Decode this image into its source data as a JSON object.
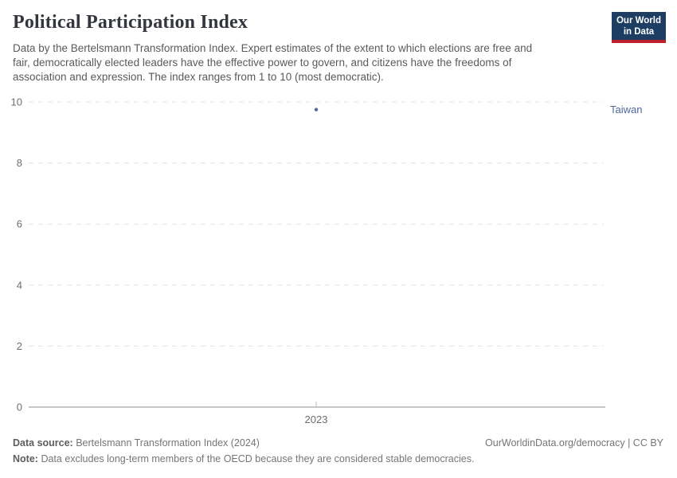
{
  "header": {
    "title": "Political Participation Index",
    "subtitle_lines": [
      "Data by the Bertelsmann Transformation Index. Expert estimates of the extent to which elections are free and",
      "fair, democratically elected leaders have the effective power to govern, and citizens have the freedoms of",
      "association and expression. The index ranges from 1 to 10 (most democratic)."
    ],
    "logo": {
      "line1": "Our World",
      "line2": "in Data"
    }
  },
  "chart_data": {
    "type": "scatter",
    "title": "Political Participation Index",
    "x": [
      2023
    ],
    "xtick_labels": [
      "2023"
    ],
    "series": [
      {
        "name": "Taiwan",
        "values": [
          9.75
        ],
        "color": "#4c6a9c"
      }
    ],
    "ylim": [
      0,
      10
    ],
    "yticks": [
      0,
      2,
      4,
      6,
      8,
      10
    ],
    "grid": "horizontal-dashed",
    "legend_position": "right-of-point",
    "colors": {
      "gridline": "#e2e2e2",
      "axis": "#8f8f8f",
      "tick_mark": "#bbbbbb",
      "tick_label": "#6e6e6e"
    }
  },
  "footer": {
    "source_label": "Data source:",
    "source_value": "Bertelsmann Transformation Index (2024)",
    "link": "OurWorldinData.org/democracy",
    "separator": "|",
    "license": "CC BY",
    "note_label": "Note:",
    "note_value": "Data excludes long-term members of the OECD because they are considered stable democracies."
  }
}
